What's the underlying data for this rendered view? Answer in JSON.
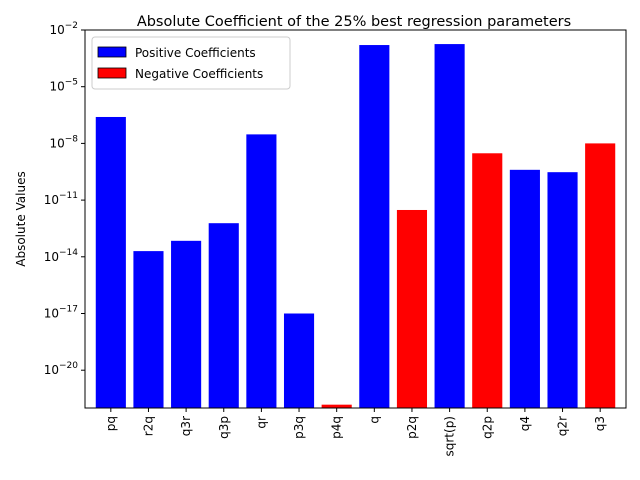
{
  "chart_data": {
    "type": "bar",
    "title": "Absolute Coefficient of the 25% best regression parameters",
    "xlabel": "",
    "ylabel": "Absolute Values",
    "yscale": "log",
    "ylim": [
      1e-22,
      0.01
    ],
    "yticks": [
      {
        "exp": -2,
        "label": "10^-2"
      },
      {
        "exp": -5,
        "label": "10^-5"
      },
      {
        "exp": -8,
        "label": "10^-8"
      },
      {
        "exp": -11,
        "label": "10^-11"
      },
      {
        "exp": -14,
        "label": "10^-14"
      },
      {
        "exp": -17,
        "label": "10^-17"
      },
      {
        "exp": -20,
        "label": "10^-20"
      }
    ],
    "categories": [
      "pq",
      "r2q",
      "q3r",
      "q3p",
      "qr",
      "p3q",
      "p4q",
      "q",
      "p2q",
      "sqrt(p)",
      "q2p",
      "q4",
      "q2r",
      "q3"
    ],
    "values": [
      2.5e-07,
      2e-14,
      7e-14,
      6e-13,
      3e-08,
      1e-17,
      1.5e-22,
      0.0016,
      3e-12,
      0.0018,
      3e-09,
      4e-10,
      3e-10,
      1e-08
    ],
    "signs": [
      "positive",
      "positive",
      "positive",
      "positive",
      "positive",
      "positive",
      "negative",
      "positive",
      "negative",
      "positive",
      "negative",
      "positive",
      "positive",
      "negative"
    ],
    "legend": {
      "position": "upper-left",
      "entries": [
        {
          "key": "positive",
          "label": "Positive Coefficients",
          "color": "#0000ff"
        },
        {
          "key": "negative",
          "label": "Negative Coefficients",
          "color": "#ff0000"
        }
      ]
    },
    "grid": false
  }
}
